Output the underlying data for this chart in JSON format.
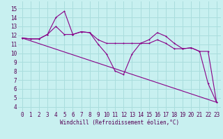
{
  "xlabel": "Windchill (Refroidissement éolien,°C)",
  "background_color": "#c8f0f0",
  "line_color": "#880088",
  "grid_color": "#aadddd",
  "xlim": [
    -0.5,
    23.5
  ],
  "ylim": [
    3.5,
    15.8
  ],
  "xticks": [
    0,
    1,
    2,
    3,
    4,
    5,
    6,
    7,
    8,
    9,
    10,
    11,
    12,
    13,
    14,
    15,
    16,
    17,
    18,
    19,
    20,
    21,
    22,
    23
  ],
  "yticks": [
    4,
    5,
    6,
    7,
    8,
    9,
    10,
    11,
    12,
    13,
    14,
    15
  ],
  "series1_x": [
    0,
    1,
    2,
    3,
    4,
    5,
    6,
    7,
    8,
    9,
    10,
    11,
    12,
    13,
    14,
    15,
    16,
    17,
    18,
    19,
    20,
    21,
    22,
    23
  ],
  "series1_y": [
    11.7,
    11.6,
    11.6,
    12.1,
    14.0,
    14.7,
    12.1,
    12.4,
    12.3,
    11.0,
    9.9,
    8.0,
    7.6,
    9.9,
    11.1,
    11.5,
    12.3,
    11.9,
    11.1,
    10.5,
    10.6,
    10.2,
    6.6,
    4.5
  ],
  "series2_x": [
    0,
    1,
    2,
    3,
    4,
    5,
    6,
    7,
    8,
    9,
    10,
    11,
    12,
    13,
    14,
    15,
    16,
    17,
    18,
    19,
    20,
    21,
    22,
    23
  ],
  "series2_y": [
    11.7,
    11.6,
    11.6,
    12.1,
    13.0,
    12.1,
    12.1,
    12.4,
    12.3,
    11.5,
    11.1,
    11.1,
    11.1,
    11.1,
    11.1,
    11.1,
    11.5,
    11.1,
    10.5,
    10.5,
    10.6,
    10.2,
    10.2,
    4.5
  ],
  "series3_x": [
    0,
    23
  ],
  "series3_y": [
    11.7,
    4.5
  ],
  "xlabel_fontsize": 5.5,
  "tick_fontsize": 5.5,
  "lw": 0.8,
  "ms": 2.0
}
